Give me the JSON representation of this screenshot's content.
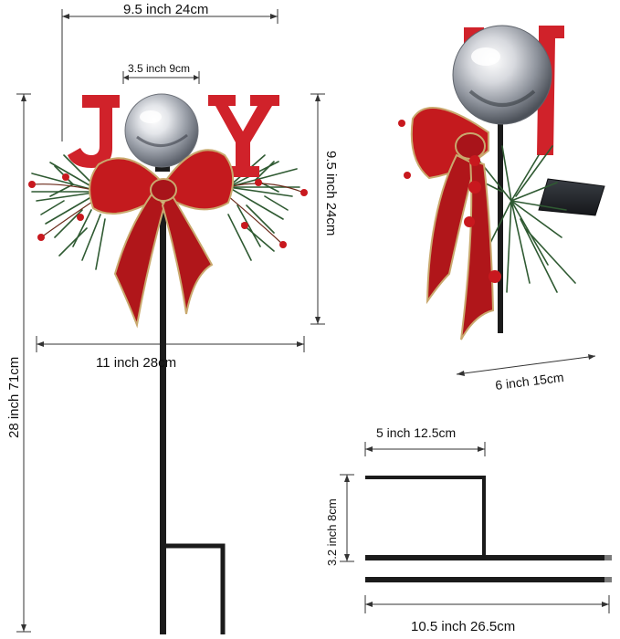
{
  "dimensions": {
    "top_width": "9.5 inch 24cm",
    "globe_width": "3.5 inch 9cm",
    "decoration_height": "9.5 inch 24cm",
    "decoration_width": "11 inch   28cm",
    "total_height": "28 inch 71cm",
    "side_depth": "6 inch 15cm",
    "stake_foot_width": "5 inch 12.5cm",
    "stake_foot_height": "3.2 inch 8cm",
    "stake_rod_length": "10.5 inch   26.5cm"
  },
  "decoration": {
    "letters": [
      "J",
      "Y"
    ],
    "colors": {
      "letter_red": "#d0222a",
      "bow_red": "#c41a1e",
      "bow_trim": "#c9a96e",
      "pine_green": "#2f5a32",
      "berry_red": "#c8181e",
      "globe_silver": "#c9ccd2",
      "stake_black": "#1b1b1b",
      "solar_panel": "#2a2d33"
    }
  }
}
